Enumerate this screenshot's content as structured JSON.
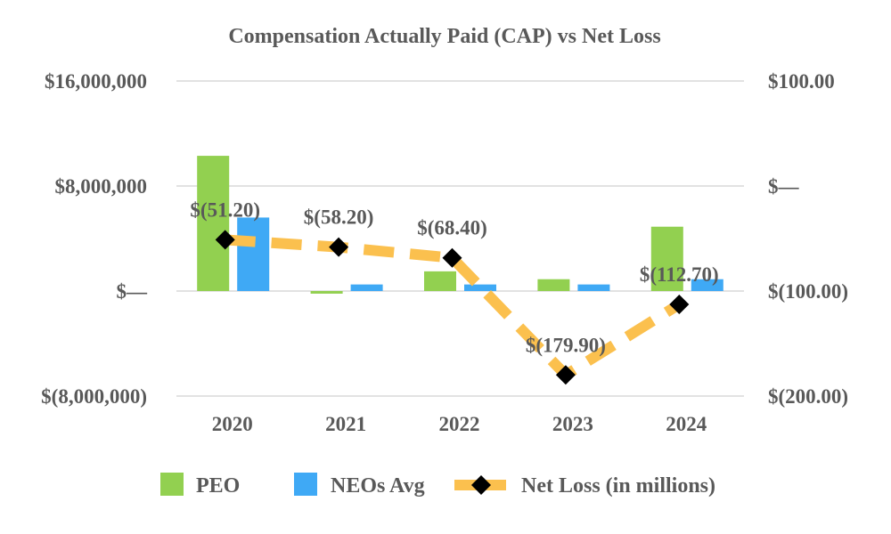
{
  "chart_data": {
    "type": "bar",
    "title": "Compensation Actually Paid (CAP) vs Net Loss",
    "categories": [
      "2020",
      "2021",
      "2022",
      "2023",
      "2024"
    ],
    "series": [
      {
        "name": "PEO",
        "kind": "bar",
        "axis": "left",
        "color": "#92d050",
        "values": [
          10300000,
          -200000,
          1500000,
          900000,
          4900000
        ]
      },
      {
        "name": "NEOs Avg",
        "kind": "bar",
        "axis": "left",
        "color": "#3fa9f5",
        "values": [
          5600000,
          500000,
          500000,
          500000,
          900000
        ]
      },
      {
        "name": "Net Loss (in millions)",
        "kind": "line",
        "axis": "right",
        "color": "#fbc04e",
        "marker_color": "#000000",
        "values": [
          -51.2,
          -58.2,
          -68.4,
          -179.9,
          -112.7
        ],
        "labels": [
          "$(51.20)",
          "$(58.20)",
          "$(68.40)",
          "$(179.90)",
          "$(112.70)"
        ]
      }
    ],
    "y_left": {
      "ylim": [
        -8000000,
        16000000
      ],
      "ticks": [
        16000000,
        8000000,
        0,
        -8000000
      ],
      "tick_labels": [
        "$16,000,000",
        "$8,000,000",
        "$—",
        "$(8,000,000)"
      ]
    },
    "y_right": {
      "ylim": [
        -200,
        100
      ],
      "ticks": [
        100,
        0,
        -100,
        -200
      ],
      "tick_labels": [
        "$100.00",
        "$—",
        "$(100.00)",
        "$(200.00)"
      ]
    },
    "grid": true,
    "legend_position": "bottom"
  }
}
